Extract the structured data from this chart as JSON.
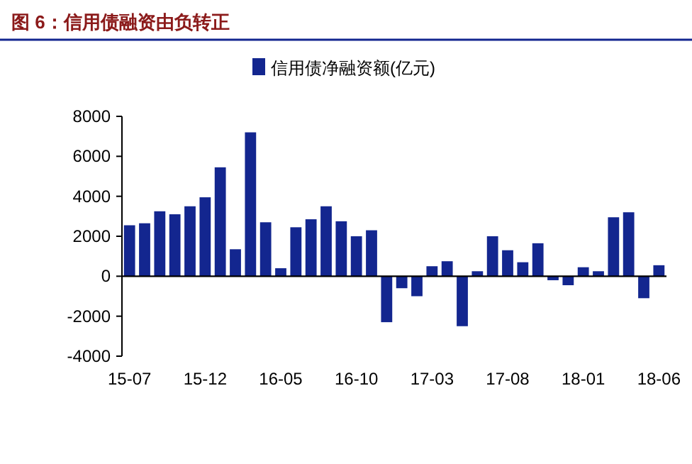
{
  "chart_data": {
    "type": "bar",
    "title": "图 6：信用债融资由负转正",
    "categories": [
      "15-07",
      null,
      null,
      null,
      null,
      "15-12",
      null,
      null,
      null,
      null,
      "16-05",
      null,
      null,
      null,
      null,
      "16-10",
      null,
      null,
      null,
      null,
      "17-03",
      null,
      null,
      null,
      null,
      "17-08",
      null,
      null,
      null,
      null,
      "18-01",
      null,
      null,
      null,
      null,
      "18-06"
    ],
    "series": [
      {
        "name": "信用债净融资额(亿元)",
        "color": "#13268f",
        "values": [
          2550,
          2650,
          3250,
          3100,
          3500,
          3950,
          5450,
          1350,
          7200,
          2700,
          400,
          2450,
          2850,
          3500,
          2750,
          2000,
          2300,
          -2300,
          -600,
          -1000,
          500,
          750,
          -2500,
          250,
          2000,
          1300,
          700,
          1650,
          -200,
          -450,
          450,
          250,
          2950,
          3200,
          -1100,
          550
        ]
      }
    ],
    "ylim": [
      -4000,
      8000
    ],
    "yticks": [
      -4000,
      -2000,
      0,
      2000,
      4000,
      6000,
      8000
    ],
    "legend": "top"
  }
}
